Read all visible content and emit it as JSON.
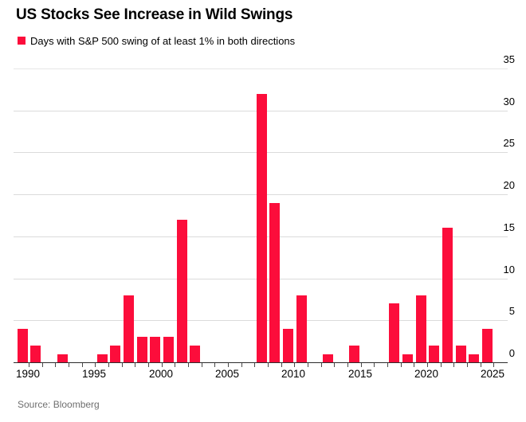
{
  "header": {
    "title": "US Stocks See Increase in Wild Swings"
  },
  "legend": {
    "label": "Days with S&P 500 swing of at least 1% in both directions"
  },
  "source": "Source: Bloomberg",
  "colors": {
    "bar": "#fc0d3b",
    "gridline": "#dbdbdb",
    "axis": "#2b2b2b",
    "text": "#000000",
    "muted": "#6f6f6f"
  },
  "chart_data": {
    "type": "bar",
    "title": "US Stocks See Increase in Wild Swings",
    "series_name": "Days with S&P 500 swing of at least 1% in both directions",
    "x": [
      1990,
      1991,
      1992,
      1993,
      1994,
      1995,
      1996,
      1997,
      1998,
      1999,
      2000,
      2001,
      2002,
      2003,
      2004,
      2005,
      2006,
      2007,
      2008,
      2009,
      2010,
      2011,
      2012,
      2013,
      2014,
      2015,
      2016,
      2017,
      2018,
      2019,
      2020,
      2021,
      2022,
      2023,
      2024,
      2025
    ],
    "values": [
      4,
      2,
      0,
      1,
      0,
      0,
      1,
      2,
      8,
      3,
      3,
      3,
      17,
      2,
      0,
      0,
      0,
      0,
      32,
      19,
      4,
      8,
      0,
      1,
      0,
      2,
      0,
      0,
      7,
      1,
      8,
      2,
      16,
      2,
      1,
      4
    ],
    "xlabel": "",
    "ylabel": "",
    "ylim": [
      0,
      35
    ],
    "ytick_step": 5,
    "yticks": [
      0,
      5,
      10,
      15,
      20,
      25,
      30,
      35
    ],
    "yticks_position": "right",
    "xticks_labeled": [
      1990,
      1995,
      2000,
      2005,
      2010,
      2015,
      2020,
      2025
    ],
    "grid": true,
    "legend_position": "top-left"
  }
}
